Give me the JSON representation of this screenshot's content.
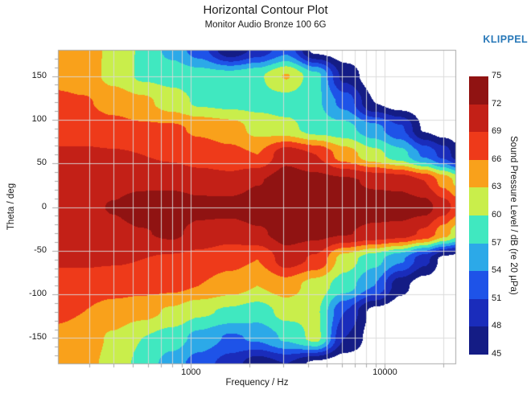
{
  "page": {
    "title": "Horizontal Contour Plot",
    "subtitle": "Monitor Audio Bronze 100 6G",
    "brand": "KLIPPEL"
  },
  "chart_data": {
    "type": "heatmap",
    "title": "Horizontal Contour Plot",
    "subtitle": "Monitor Audio Bronze 100 6G",
    "xlabel": "Frequency / Hz",
    "ylabel": "Theta / deg",
    "colorbar_label": "Sound Pressure Level / dB (re 20 µPa)",
    "x_scale": "log",
    "x_range": [
      206,
      23300
    ],
    "x_major_ticks": [
      1000,
      10000
    ],
    "x_minor_ticks": [
      300,
      400,
      500,
      600,
      700,
      800,
      900,
      2000,
      3000,
      4000,
      5000,
      6000,
      7000,
      8000,
      9000,
      20000
    ],
    "y_range": [
      -180,
      180
    ],
    "y_major_ticks": [
      150,
      100,
      50,
      0,
      -50,
      -100,
      -150
    ],
    "y_minor_step": 10,
    "grid": true,
    "legend_position": "right-colorbar",
    "levels": [
      45,
      48,
      51,
      54,
      57,
      60,
      63,
      66,
      69,
      72,
      75
    ],
    "band_colors": [
      "#141c85",
      "#1a2cbb",
      "#1e53e8",
      "#2ca9e8",
      "#40e8c0",
      "#c9ee4b",
      "#f9a11b",
      "#ee3a1a",
      "#c32017",
      "#901312"
    ],
    "below_min_color": "#ffffff",
    "colors": {
      "grid": "#d9d9d9",
      "border": "#a8a8a8",
      "tick": "#aaaaaa",
      "text": "#1a1a1a",
      "brand": "#2878b8"
    },
    "frequencies": [
      200,
      280,
      400,
      560,
      800,
      1100,
      1600,
      2200,
      3100,
      4400,
      6200,
      8800,
      12000,
      16000,
      20000,
      24000
    ],
    "thetas": [
      180,
      150,
      120,
      90,
      60,
      30,
      0,
      -30,
      -60,
      -90,
      -120,
      -150,
      -180
    ],
    "spl": [
      [
        64,
        64,
        62.5,
        59.5,
        56,
        52.5,
        45.5,
        49,
        53,
        44,
        43,
        43,
        43,
        43,
        43,
        43
      ],
      [
        65,
        64.6,
        62,
        59.5,
        59,
        58.5,
        58.5,
        59.5,
        63.2,
        58,
        47,
        43,
        43,
        43,
        43,
        43
      ],
      [
        66.8,
        66.3,
        65,
        63.8,
        61.5,
        59.5,
        59,
        59,
        58.5,
        57.5,
        53,
        45,
        43,
        43,
        43,
        43
      ],
      [
        67.5,
        67.5,
        67,
        66.5,
        66.5,
        65.5,
        64.5,
        62,
        61,
        58.5,
        58,
        55,
        51.5,
        44.5,
        43,
        43
      ],
      [
        69.5,
        69.5,
        69.3,
        69,
        68.5,
        67.5,
        66.8,
        66,
        71,
        69,
        64.5,
        61,
        58.2,
        53.5,
        50,
        46
      ],
      [
        70.5,
        70.8,
        71,
        71.2,
        71,
        70.5,
        70,
        71.8,
        73.5,
        73,
        72.5,
        71.5,
        71,
        69,
        65,
        62
      ],
      [
        70.8,
        71.2,
        72.2,
        73.6,
        74.2,
        73,
        73.2,
        74,
        74.5,
        74.5,
        74,
        73.5,
        73.8,
        73.2,
        70.5,
        67.5
      ],
      [
        70.5,
        70.8,
        71.2,
        71.8,
        72.6,
        71,
        70.2,
        71.5,
        73.2,
        72.8,
        72.2,
        71.2,
        70.5,
        68.5,
        64.5,
        61
      ],
      [
        69.5,
        69.5,
        69.3,
        69,
        68.5,
        68,
        67,
        66,
        70.5,
        68.5,
        61.5,
        58,
        54.5,
        49,
        44,
        43
      ],
      [
        67.5,
        67.5,
        67.2,
        67,
        66.8,
        66,
        64.5,
        63,
        64.5,
        61.5,
        58.5,
        54,
        46,
        43,
        43,
        43
      ],
      [
        66.8,
        66,
        64.8,
        64,
        62.5,
        60.5,
        59.5,
        58.5,
        61,
        60.5,
        51,
        44,
        43,
        43,
        43,
        43
      ],
      [
        65,
        64.5,
        62.5,
        60,
        58.5,
        56,
        53.5,
        54.5,
        57.5,
        61,
        48,
        43.5,
        43,
        43,
        43,
        43
      ],
      [
        64.5,
        64,
        62,
        59,
        55.5,
        52.5,
        49.5,
        46,
        48,
        44,
        43,
        43,
        43,
        43,
        43,
        43
      ]
    ]
  }
}
